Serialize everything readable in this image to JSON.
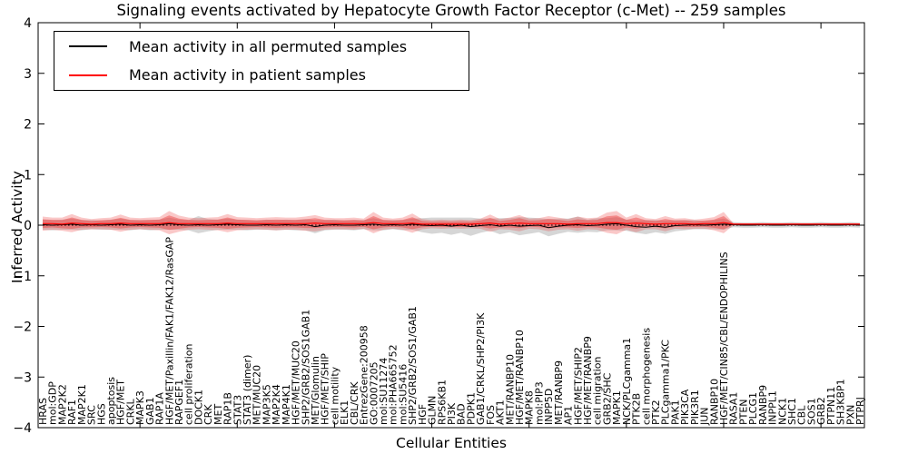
{
  "chart_data": {
    "type": "line",
    "title": "Signaling events activated by Hepatocyte Growth Factor Receptor (c-Met) -- 259 samples",
    "xlabel": "Cellular Entities",
    "ylabel": "Inferred Activity",
    "ylim": [
      -4,
      4
    ],
    "grid": false,
    "legend_position": "upper left",
    "yticks": [
      {
        "v": -4,
        "label": "−4"
      },
      {
        "v": -3,
        "label": "−3"
      },
      {
        "v": -2,
        "label": "−2"
      },
      {
        "v": -1,
        "label": "−1"
      },
      {
        "v": 0,
        "label": "0"
      },
      {
        "v": 1,
        "label": "1"
      },
      {
        "v": 2,
        "label": "2"
      },
      {
        "v": 3,
        "label": "3"
      },
      {
        "v": 4,
        "label": "4"
      }
    ],
    "categories": [
      "HRAS",
      "mol:GDP",
      "MAP2K2",
      "RAF1",
      "MAP2K1",
      "SRC",
      "HGS",
      "apoptosis",
      "HGF/MET",
      "CRKL",
      "MAPK3",
      "GAB1",
      "RAP1A",
      "HGF/MET/Paxillin/FAK1/FAK12/RasGAP",
      "RAPGEF1",
      "cell proliferation",
      "DOCK1",
      "CRK",
      "MET",
      "RAP1B",
      "STAT3",
      "STAT3 (dimer)",
      "MET/MUC20",
      "MAP3K5",
      "MAP2K4",
      "MAP4K1",
      "HGF/MET/MUC20",
      "SHP2/GRB2/SOS1GAB1",
      "MET/Glomulin",
      "HGF/MET/SHIP",
      "cell motility",
      "ELK1",
      "CBL/CRK",
      "EntrezGene:200958",
      "GO:0007205",
      "mol:SU11274",
      "mol:PHA665752",
      "mol:SU5416",
      "SHP2/GRB2/SOS1/GAB1",
      "HGF",
      "GLMN",
      "RPS6KB1",
      "PI3K",
      "BAD",
      "PDPK1",
      "GAB1/CRKL/SHP2/PI3K",
      "FOS",
      "AKT1",
      "MET/RANBP10",
      "HGF/MET/RANBP10",
      "MAPK8",
      "mol:PIP3",
      "INPP5D",
      "MET/RANBP9",
      "AP1",
      "HGF/MET/SHIP2",
      "HGF/MET/RANBP9",
      "cell migration",
      "GRB2/SHC",
      "MAPK1",
      "NCK/PLCgamma1",
      "PTK2B",
      "cell morphogenesis",
      "PTK2",
      "PLCgamma1/PKC",
      "PAK1",
      "PIK3CA",
      "PIK3R1",
      "JUN",
      "RANBP10",
      "HGF/MET/CIN85/CBL/ENDOPHILINS",
      "RASA1",
      "PTEN",
      "PLCG1",
      "RANBP9",
      "INPPL1",
      "NCK1",
      "SHC1",
      "CBL",
      "SOS1",
      "GRB2",
      "PTPN11",
      "SH3KBP1",
      "PXN",
      "PTPRJ"
    ],
    "series": [
      {
        "name": "Mean activity in all permuted samples",
        "color": "#000000",
        "values": [
          0.01,
          0.0,
          0.01,
          0.02,
          0.0,
          0.01,
          0.0,
          0.01,
          0.02,
          0.0,
          0.01,
          0.0,
          0.01,
          0.03,
          0.01,
          0.0,
          0.01,
          0.0,
          0.01,
          0.02,
          0.01,
          0.0,
          0.0,
          0.01,
          0.0,
          0.01,
          0.0,
          0.01,
          -0.03,
          0.0,
          0.01,
          0.0,
          0.0,
          0.01,
          0.02,
          0.0,
          0.01,
          0.0,
          0.02,
          0.0,
          -0.01,
          0.0,
          -0.02,
          0.0,
          -0.03,
          -0.01,
          0.01,
          -0.02,
          0.0,
          -0.02,
          -0.01,
          0.0,
          -0.05,
          -0.02,
          0.0,
          0.01,
          -0.01,
          0.0,
          0.02,
          0.03,
          0.0,
          -0.03,
          -0.04,
          -0.02,
          -0.04,
          -0.01,
          0.0,
          0.01,
          0.0,
          0.01,
          0.02,
          0.01,
          0.0,
          0.0,
          0.01,
          0.0,
          0.0,
          0.01,
          0.0,
          0.0,
          0.01,
          0.0,
          0.0,
          0.01,
          0.0
        ]
      },
      {
        "name": "Mean activity in patient samples",
        "color": "#ff0000",
        "values": [
          0.03,
          0.03,
          0.02,
          0.04,
          0.03,
          0.02,
          0.03,
          0.03,
          0.04,
          0.03,
          0.03,
          0.03,
          0.03,
          0.05,
          0.03,
          0.03,
          0.03,
          0.03,
          0.03,
          0.04,
          0.03,
          0.03,
          0.03,
          0.03,
          0.03,
          0.03,
          0.03,
          0.03,
          0.04,
          0.03,
          0.03,
          0.03,
          0.03,
          0.03,
          0.05,
          0.03,
          0.03,
          0.03,
          0.04,
          0.02,
          0.02,
          0.02,
          0.02,
          0.02,
          0.02,
          0.03,
          0.04,
          0.02,
          0.03,
          0.04,
          0.03,
          0.03,
          0.03,
          0.03,
          0.02,
          0.03,
          0.03,
          0.03,
          0.05,
          0.05,
          0.03,
          0.04,
          0.03,
          0.02,
          0.03,
          0.03,
          0.03,
          0.02,
          0.03,
          0.03,
          0.05,
          0.02,
          0.02,
          0.02,
          0.02,
          0.02,
          0.02,
          0.02,
          0.02,
          0.02,
          0.02,
          0.02,
          0.02,
          0.02,
          0.02
        ]
      },
      {
        "name": "permuted samples band half-width",
        "color": "#bbbbbb",
        "values": [
          0.1,
          0.1,
          0.1,
          0.11,
          0.1,
          0.09,
          0.09,
          0.1,
          0.11,
          0.1,
          0.09,
          0.1,
          0.1,
          0.12,
          0.1,
          0.1,
          0.17,
          0.12,
          0.1,
          0.11,
          0.1,
          0.1,
          0.09,
          0.1,
          0.1,
          0.1,
          0.1,
          0.11,
          0.13,
          0.1,
          0.1,
          0.09,
          0.1,
          0.09,
          0.12,
          0.1,
          0.09,
          0.1,
          0.11,
          0.14,
          0.16,
          0.15,
          0.17,
          0.15,
          0.18,
          0.14,
          0.12,
          0.16,
          0.14,
          0.18,
          0.16,
          0.14,
          0.17,
          0.15,
          0.13,
          0.16,
          0.12,
          0.14,
          0.12,
          0.13,
          0.11,
          0.12,
          0.14,
          0.12,
          0.13,
          0.11,
          0.1,
          0.09,
          0.08,
          0.09,
          0.11,
          0.05,
          0.05,
          0.05,
          0.05,
          0.05,
          0.05,
          0.05,
          0.05,
          0.05,
          0.05,
          0.05,
          0.05,
          0.05,
          0.05
        ]
      },
      {
        "name": "patient samples band half-width",
        "color": "#ee3b3b",
        "values": [
          0.14,
          0.12,
          0.13,
          0.18,
          0.12,
          0.1,
          0.11,
          0.12,
          0.17,
          0.12,
          0.11,
          0.12,
          0.13,
          0.23,
          0.16,
          0.12,
          0.11,
          0.12,
          0.13,
          0.18,
          0.13,
          0.12,
          0.11,
          0.12,
          0.13,
          0.12,
          0.12,
          0.14,
          0.16,
          0.12,
          0.11,
          0.11,
          0.12,
          0.1,
          0.21,
          0.12,
          0.1,
          0.12,
          0.19,
          0.1,
          0.08,
          0.09,
          0.08,
          0.09,
          0.08,
          0.1,
          0.17,
          0.1,
          0.12,
          0.16,
          0.1,
          0.11,
          0.15,
          0.12,
          0.1,
          0.14,
          0.11,
          0.12,
          0.2,
          0.23,
          0.12,
          0.18,
          0.11,
          0.1,
          0.15,
          0.1,
          0.11,
          0.09,
          0.1,
          0.13,
          0.21,
          0.02,
          0.02,
          0.02,
          0.02,
          0.02,
          0.02,
          0.02,
          0.02,
          0.02,
          0.02,
          0.02,
          0.02,
          0.02,
          0.02
        ]
      }
    ],
    "zero_line": {
      "value": 0,
      "style": "dotted",
      "color": "#000000"
    }
  },
  "legend": {
    "items": [
      {
        "label": "Mean activity in all permuted samples",
        "color": "#000000"
      },
      {
        "label": "Mean activity in patient samples",
        "color": "#ff0000"
      }
    ]
  }
}
